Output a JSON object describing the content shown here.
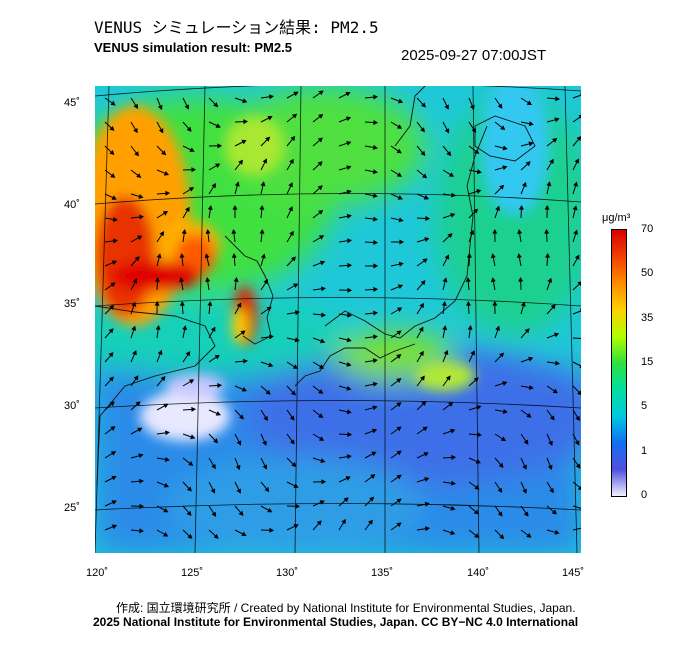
{
  "header": {
    "title_jp": "VENUS シミュレーション結果: PM2.5",
    "title_en": "VENUS simulation result: PM2.5",
    "timestamp": "2025-09-27 07:00JST"
  },
  "map": {
    "region": "East Asia / Japan",
    "lat_ticks": [
      "45˚",
      "40˚",
      "35˚",
      "30˚",
      "25˚"
    ],
    "lon_ticks": [
      "120˚",
      "125˚",
      "130˚",
      "135˚",
      "140˚",
      "145˚"
    ],
    "features": [
      "PM2.5 concentration field",
      "wind vectors",
      "coastlines",
      "graticule"
    ]
  },
  "colorbar": {
    "unit": "μg/m³",
    "ticks": [
      "70",
      "50",
      "35",
      "15",
      "5",
      "1",
      "0"
    ],
    "colors": [
      "#d90000",
      "#ff8c00",
      "#ffd000",
      "#30e040",
      "#00c8e0",
      "#1070f0",
      "#f0f0ff"
    ]
  },
  "footer": {
    "credit_line": "作成: 国立環境研究所 / Created by National Institute for Environmental Studies, Japan.",
    "license_line": "2025 National Institute for Environmental Studies, Japan. CC BY−NC 4.0 International"
  }
}
